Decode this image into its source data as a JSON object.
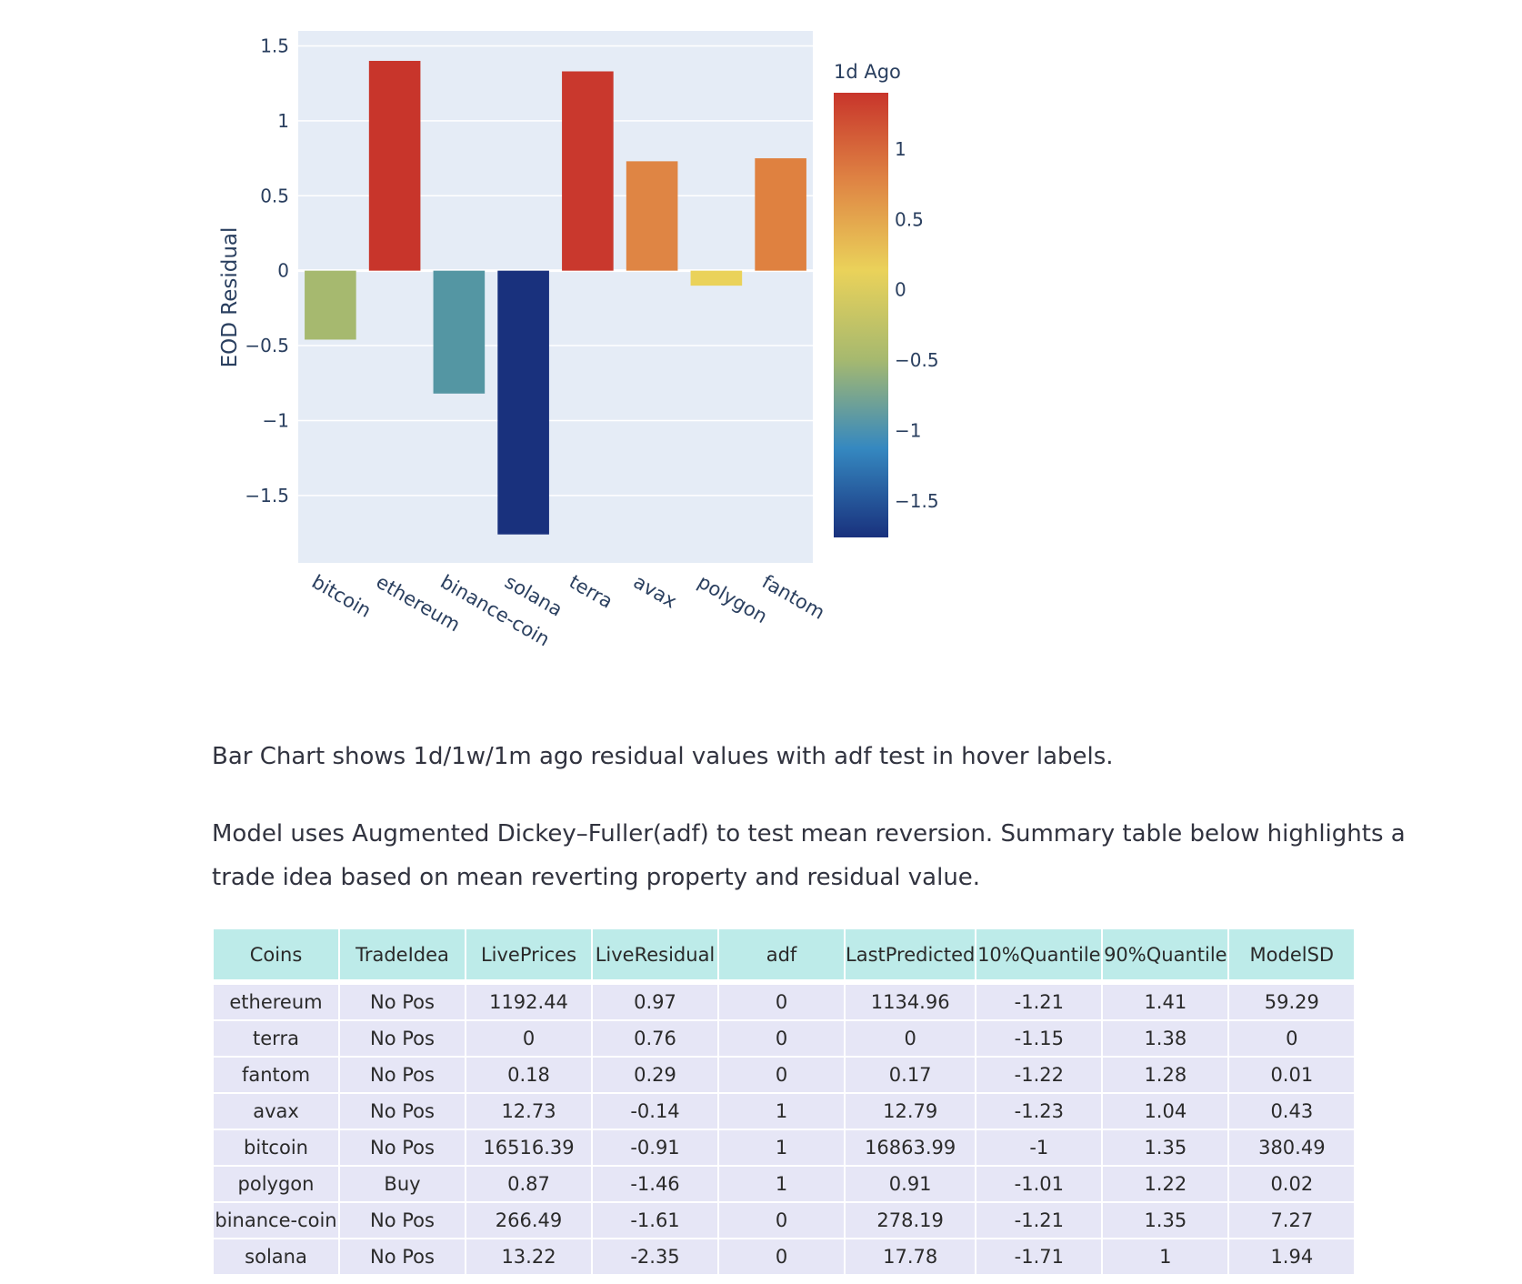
{
  "chart_data": {
    "type": "bar",
    "categories": [
      "bitcoin",
      "ethereum",
      "binance-coin",
      "solana",
      "terra",
      "avax",
      "polygon",
      "fantom"
    ],
    "values": [
      -0.46,
      1.4,
      -0.82,
      -1.76,
      1.33,
      0.73,
      -0.1,
      0.75
    ],
    "colors": [
      "#a6b96f",
      "#c8352b",
      "#5496a3",
      "#19317d",
      "#c9382d",
      "#df8544",
      "#ead25a",
      "#df8140"
    ],
    "ylabel": "EOD Residual",
    "ylim": [
      -1.95,
      1.6
    ],
    "y_ticks": [
      1.5,
      1,
      0.5,
      0,
      -0.5,
      -1,
      -1.5
    ],
    "y_tick_labels": [
      "1.5",
      "1",
      "0.5",
      "0",
      "−0.5",
      "−1",
      "−1.5"
    ],
    "grid": true,
    "colorbar": {
      "title": "1d Ago",
      "range": [
        -1.76,
        1.4
      ],
      "ticks": [
        1,
        0.5,
        0,
        -0.5,
        -1,
        -1.5
      ],
      "tick_labels": [
        "1",
        "0.5",
        "0",
        "−0.5",
        "−1",
        "−1.5"
      ],
      "colorscale": [
        "#19317d",
        "#3588c0",
        "#a6b96f",
        "#ead25a",
        "#df8544",
        "#c8352b"
      ]
    }
  },
  "description": {
    "line1": "Bar Chart shows 1d/1w/1m ago residual values with adf test in hover labels.",
    "line2": "Model uses Augmented Dickey–Fuller(adf) to test mean reversion. Summary table below highlights a trade idea based on mean reverting property and residual value."
  },
  "table": {
    "headers": [
      "Coins",
      "TradeIdea",
      "LivePrices",
      "LiveResidual",
      "adf",
      "LastPredicted",
      "10%Quantile",
      "90%Quantile",
      "ModelSD"
    ],
    "rows": [
      [
        "ethereum",
        "No Pos",
        "1192.44",
        "0.97",
        "0",
        "1134.96",
        "-1.21",
        "1.41",
        "59.29"
      ],
      [
        "terra",
        "No Pos",
        "0",
        "0.76",
        "0",
        "0",
        "-1.15",
        "1.38",
        "0"
      ],
      [
        "fantom",
        "No Pos",
        "0.18",
        "0.29",
        "0",
        "0.17",
        "-1.22",
        "1.28",
        "0.01"
      ],
      [
        "avax",
        "No Pos",
        "12.73",
        "-0.14",
        "1",
        "12.79",
        "-1.23",
        "1.04",
        "0.43"
      ],
      [
        "bitcoin",
        "No Pos",
        "16516.39",
        "-0.91",
        "1",
        "16863.99",
        "-1",
        "1.35",
        "380.49"
      ],
      [
        "polygon",
        "Buy",
        "0.87",
        "-1.46",
        "1",
        "0.91",
        "-1.01",
        "1.22",
        "0.02"
      ],
      [
        "binance-coin",
        "No Pos",
        "266.49",
        "-1.61",
        "0",
        "278.19",
        "-1.21",
        "1.35",
        "7.27"
      ],
      [
        "solana",
        "No Pos",
        "13.22",
        "-2.35",
        "0",
        "17.78",
        "-1.71",
        "1",
        "1.94"
      ]
    ]
  }
}
